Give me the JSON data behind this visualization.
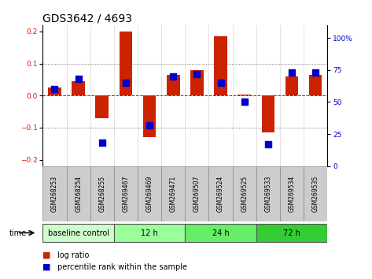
{
  "title": "GDS3642 / 4693",
  "samples": [
    "GSM268253",
    "GSM268254",
    "GSM268255",
    "GSM269467",
    "GSM269469",
    "GSM269471",
    "GSM269507",
    "GSM269524",
    "GSM269525",
    "GSM269533",
    "GSM269534",
    "GSM269535"
  ],
  "log_ratio": [
    0.025,
    0.045,
    -0.07,
    0.2,
    -0.13,
    0.065,
    0.08,
    0.185,
    0.002,
    -0.115,
    0.06,
    0.065
  ],
  "pct_rank": [
    0.6,
    0.68,
    0.18,
    0.65,
    0.32,
    0.7,
    0.72,
    0.65,
    0.5,
    0.17,
    0.73,
    0.73
  ],
  "groups": [
    {
      "label": "baseline control",
      "start": 0,
      "end": 3,
      "color": "#ccffcc"
    },
    {
      "label": "12 h",
      "start": 3,
      "end": 6,
      "color": "#99ff99"
    },
    {
      "label": "24 h",
      "start": 6,
      "end": 9,
      "color": "#66ee66"
    },
    {
      "label": "72 h",
      "start": 9,
      "end": 12,
      "color": "#33cc33"
    }
  ],
  "ylim": [
    -0.22,
    0.22
  ],
  "y2lim": [
    0,
    110
  ],
  "bar_color": "#cc2200",
  "dot_color": "#0000cc",
  "bg_color": "#ffffff",
  "label_bg": "#cccccc",
  "y_ticks": [
    -0.2,
    -0.1,
    0.0,
    0.1,
    0.2
  ],
  "y2_ticks": [
    0,
    25,
    50,
    75,
    100
  ],
  "bar_width": 0.55,
  "dot_size": 28,
  "title_fontsize": 10,
  "tick_fontsize": 6.5,
  "sample_fontsize": 5.5,
  "group_fontsize": 7,
  "legend_fontsize": 7
}
